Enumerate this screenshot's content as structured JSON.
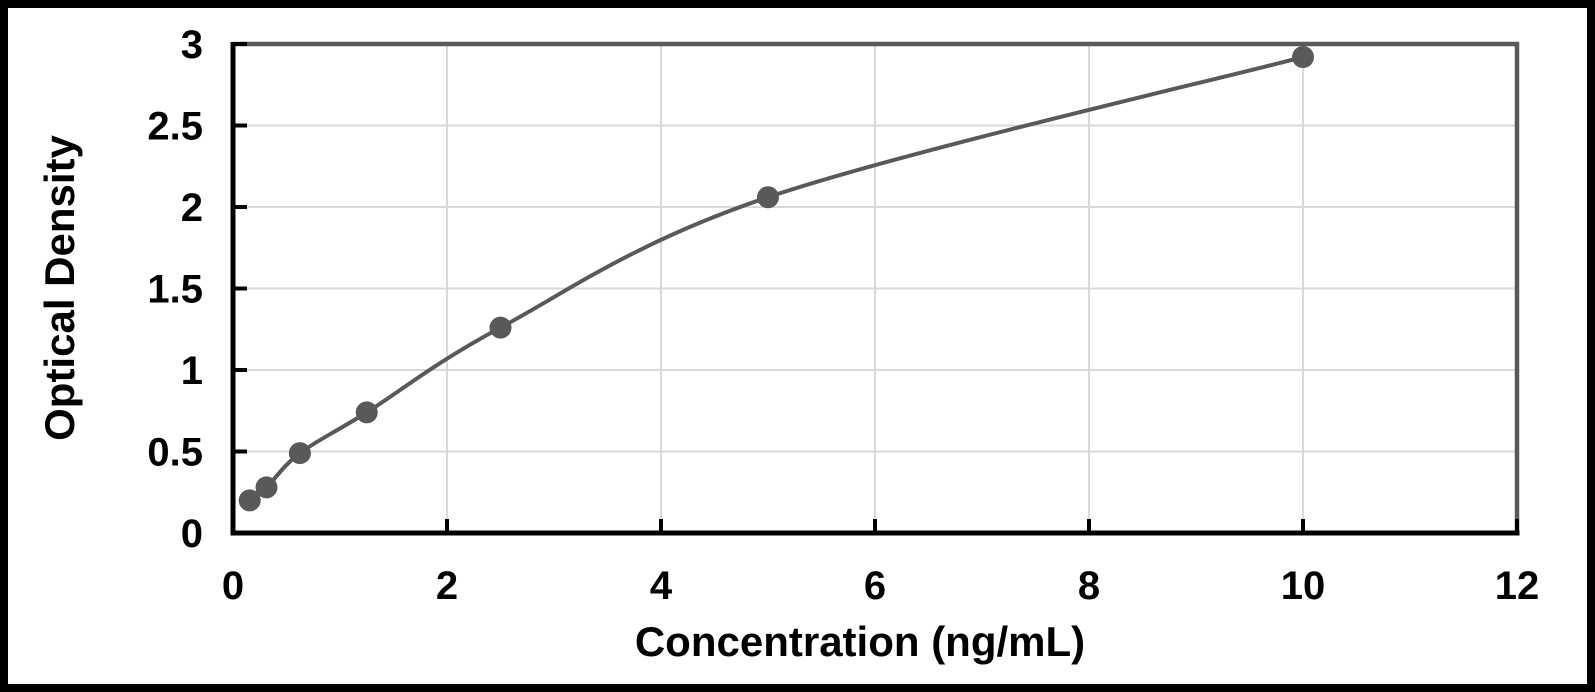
{
  "figure": {
    "background_color": "#ffffff",
    "frame_border_color": "#000000"
  },
  "chart_data": {
    "type": "line",
    "title": "",
    "xlabel": "Concentration (ng/mL)",
    "ylabel": "Optical Density",
    "x": [
      0.156,
      0.313,
      0.625,
      1.25,
      2.5,
      5,
      10
    ],
    "y": [
      0.2,
      0.28,
      0.49,
      0.74,
      1.26,
      2.06,
      2.92
    ],
    "xlim": [
      0,
      12
    ],
    "ylim": [
      0,
      3
    ],
    "x_ticks": [
      0,
      2,
      4,
      6,
      8,
      10,
      12
    ],
    "y_ticks": [
      0,
      0.5,
      1,
      1.5,
      2,
      2.5,
      3
    ],
    "grid": true,
    "legend_position": "none",
    "marker_shape": "circle",
    "colors": {
      "line": "#595959",
      "marker": "#595959",
      "gridline": "#d9d9d9",
      "axis": "#000000",
      "plot_border": "#595959",
      "tick_text": "#000000"
    }
  }
}
